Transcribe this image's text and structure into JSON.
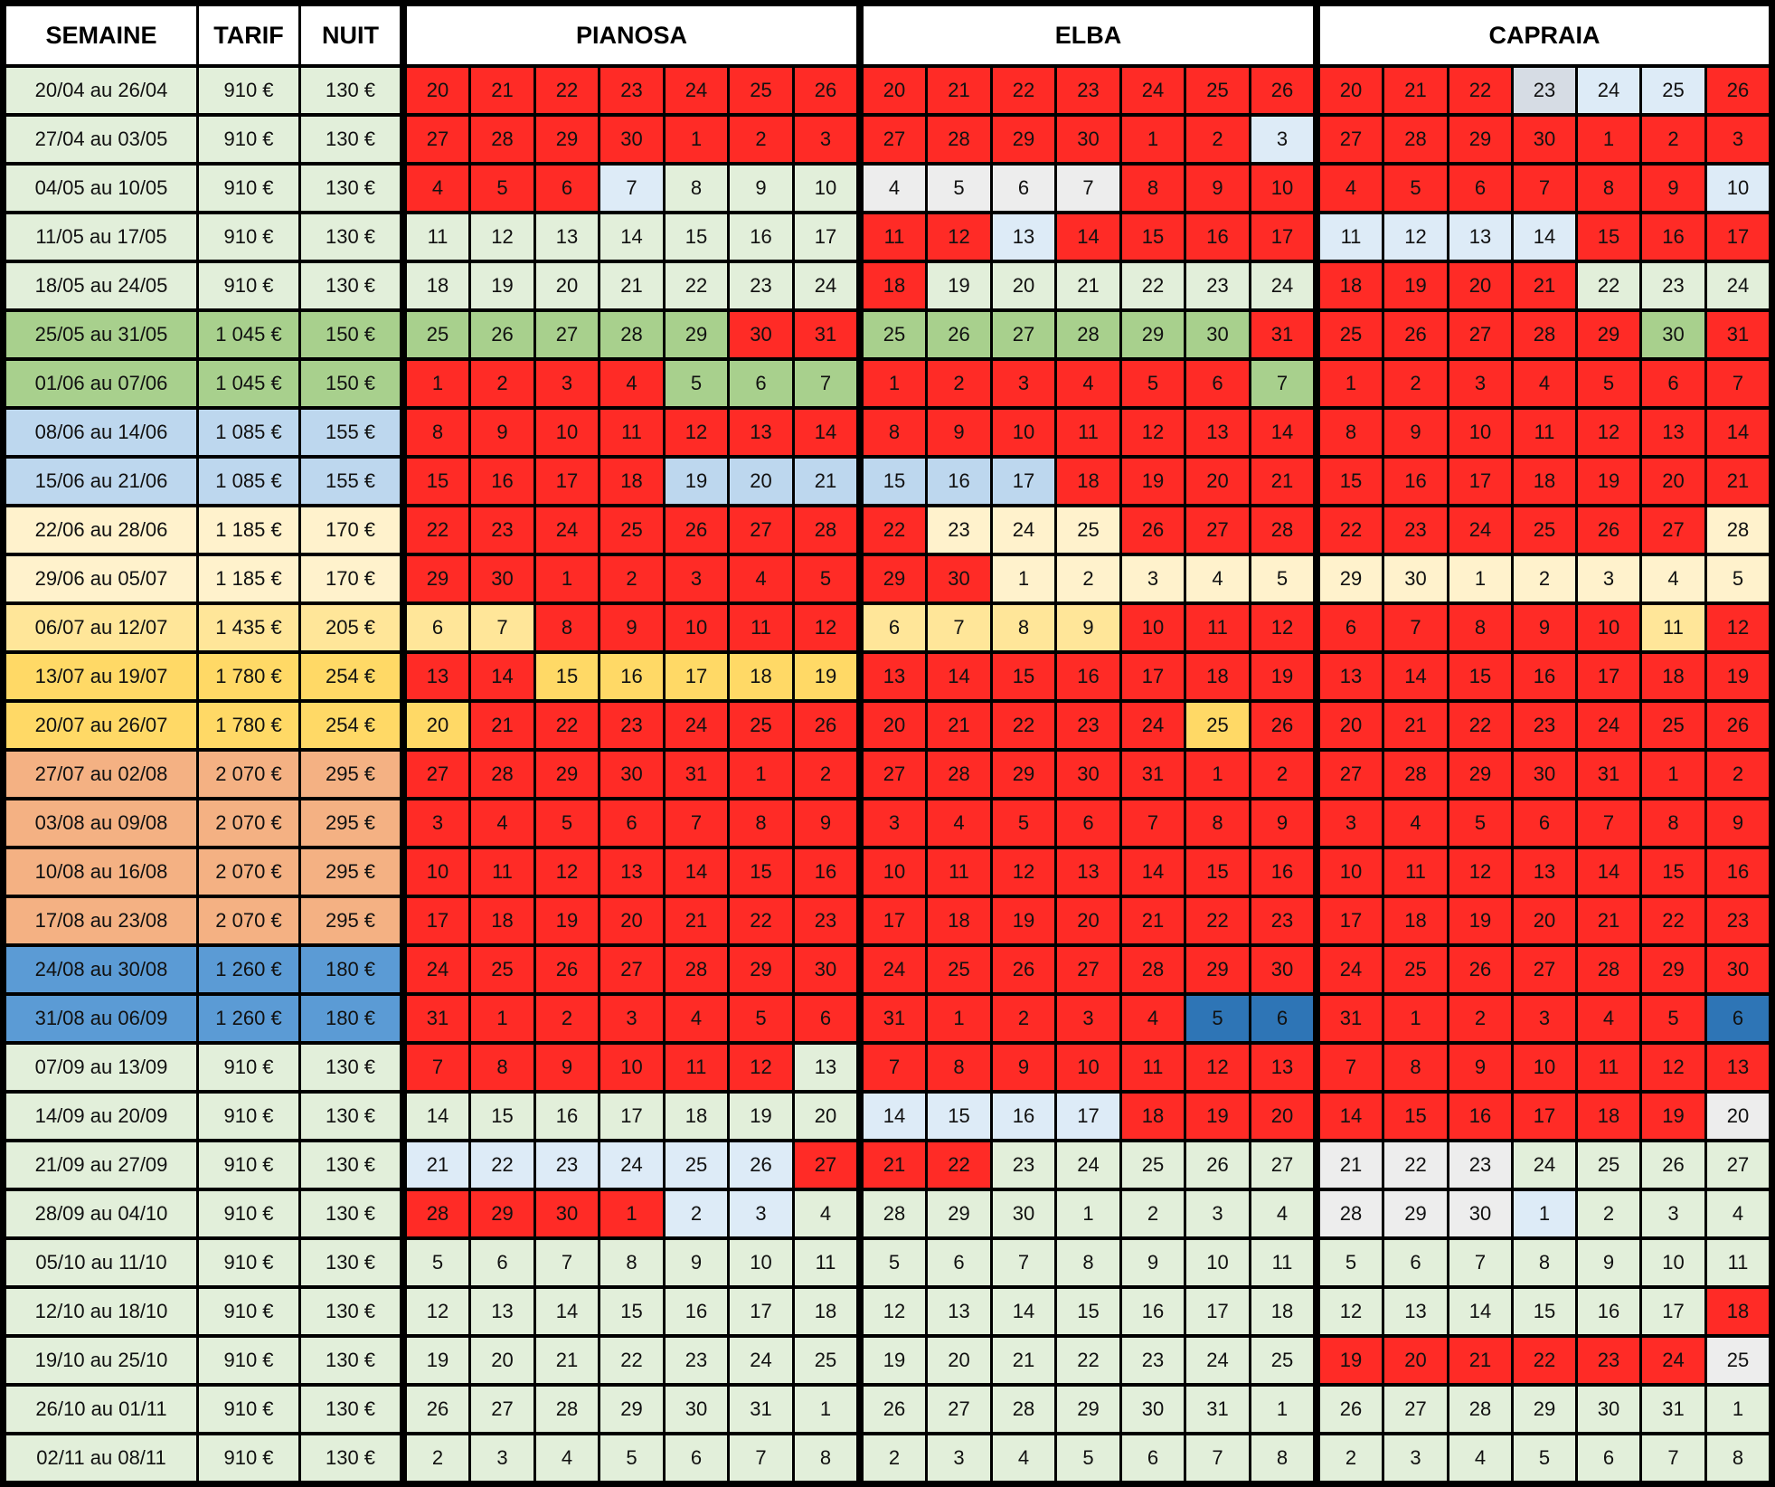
{
  "header": {
    "semaine": "SEMAINE",
    "tarif": "TARIF",
    "nuit": "NUIT",
    "pianosa": "PIANOSA",
    "elba": "ELBA",
    "capraia": "CAPRAIA"
  },
  "legend": {
    "R": "#ff2b26",
    "G": "#e2efda",
    "T": "#a8d08d",
    "B": "#bdd7ee",
    "Y": "#fff2cc",
    "Y2": "#ffe699",
    "Y3": "#ffd966",
    "O": "#f4b183",
    "D": "#5b9bd5",
    "DB": "#2e75b6",
    "W": "#ededed",
    "LB": "#ddebf7",
    "GR": "#d6dce4"
  },
  "weeks": [
    {
      "semaine": "20/04 au 26/04",
      "tarif": "910 €",
      "nuit": "130 €",
      "bg": "G",
      "days": [
        "20",
        "21",
        "22",
        "23",
        "24",
        "25",
        "26"
      ],
      "pianosa": "RRRRRRR",
      "elba": "RRRRRRR",
      "capraia": [
        "R",
        "R",
        "R",
        "GR",
        "LB",
        "LB",
        "R"
      ]
    },
    {
      "semaine": "27/04 au 03/05",
      "tarif": "910 €",
      "nuit": "130 €",
      "bg": "G",
      "days": [
        "27",
        "28",
        "29",
        "30",
        "1",
        "2",
        "3"
      ],
      "pianosa": "RRRRRRR",
      "elba": [
        "R",
        "R",
        "R",
        "R",
        "R",
        "R",
        "LB"
      ],
      "capraia": "RRRRRRR"
    },
    {
      "semaine": "04/05 au 10/05",
      "tarif": "910 €",
      "nuit": "130 €",
      "bg": "G",
      "days": [
        "4",
        "5",
        "6",
        "7",
        "8",
        "9",
        "10"
      ],
      "pianosa": [
        "R",
        "R",
        "R",
        "LB",
        "G",
        "G",
        "G"
      ],
      "elba": [
        "W",
        "W",
        "W",
        "W",
        "R",
        "R",
        "R"
      ],
      "capraia": [
        "R",
        "R",
        "R",
        "R",
        "R",
        "R",
        "LB"
      ]
    },
    {
      "semaine": "11/05 au 17/05",
      "tarif": "910 €",
      "nuit": "130 €",
      "bg": "G",
      "days": [
        "11",
        "12",
        "13",
        "14",
        "15",
        "16",
        "17"
      ],
      "pianosa": "GGGGGGG",
      "elba": [
        "R",
        "R",
        "LB",
        "R",
        "R",
        "R",
        "R"
      ],
      "capraia": [
        "LB",
        "LB",
        "LB",
        "LB",
        "R",
        "R",
        "R"
      ]
    },
    {
      "semaine": "18/05 au 24/05",
      "tarif": "910 €",
      "nuit": "130 €",
      "bg": "G",
      "days": [
        "18",
        "19",
        "20",
        "21",
        "22",
        "23",
        "24"
      ],
      "pianosa": "GGGGGGG",
      "elba": "RGGGGGG",
      "capraia": "RRRRGGG"
    },
    {
      "semaine": "25/05 au 31/05",
      "tarif": "1 045 €",
      "nuit": "150 €",
      "bg": "T",
      "days": [
        "25",
        "26",
        "27",
        "28",
        "29",
        "30",
        "31"
      ],
      "pianosa": "TTTTTRR",
      "elba": "TTTTTTR",
      "capraia": "RRRRRTR"
    },
    {
      "semaine": "01/06 au 07/06",
      "tarif": "1 045 €",
      "nuit": "150 €",
      "bg": "T",
      "days": [
        "1",
        "2",
        "3",
        "4",
        "5",
        "6",
        "7"
      ],
      "pianosa": "RRRRTTT",
      "elba": "RRRRRRT",
      "capraia": "RRRRRRR"
    },
    {
      "semaine": "08/06 au 14/06",
      "tarif": "1 085 €",
      "nuit": "155 €",
      "bg": "B",
      "days": [
        "8",
        "9",
        "10",
        "11",
        "12",
        "13",
        "14"
      ],
      "pianosa": "RRRRRRR",
      "elba": "RRRRRRR",
      "capraia": "RRRRRRR"
    },
    {
      "semaine": "15/06 au 21/06",
      "tarif": "1 085 €",
      "nuit": "155 €",
      "bg": "B",
      "days": [
        "15",
        "16",
        "17",
        "18",
        "19",
        "20",
        "21"
      ],
      "pianosa": "RRRRBBB",
      "elba": "BBBRRRR",
      "capraia": "RRRRRRR"
    },
    {
      "semaine": "22/06 au 28/06",
      "tarif": "1 185 €",
      "nuit": "170 €",
      "bg": "Y",
      "days": [
        "22",
        "23",
        "24",
        "25",
        "26",
        "27",
        "28"
      ],
      "pianosa": "RRRRRRR",
      "elba": "RYYYRRR",
      "capraia": "RRRRRRY"
    },
    {
      "semaine": "29/06 au 05/07",
      "tarif": "1 185 €",
      "nuit": "170 €",
      "bg": "Y",
      "days": [
        "29",
        "30",
        "1",
        "2",
        "3",
        "4",
        "5"
      ],
      "pianosa": "RRRRRRR",
      "elba": "RRYYYYY",
      "capraia": "YYYYYYY"
    },
    {
      "semaine": "06/07 au 12/07",
      "tarif": "1 435 €",
      "nuit": "205 €",
      "bg": "Y2",
      "days": [
        "6",
        "7",
        "8",
        "9",
        "10",
        "11",
        "12"
      ],
      "pianosa": [
        "Y2",
        "Y2",
        "R",
        "R",
        "R",
        "R",
        "R"
      ],
      "elba": [
        "Y2",
        "Y2",
        "Y2",
        "Y2",
        "R",
        "R",
        "R"
      ],
      "capraia": [
        "R",
        "R",
        "R",
        "R",
        "R",
        "Y2",
        "R"
      ]
    },
    {
      "semaine": "13/07 au 19/07",
      "tarif": "1 780 €",
      "nuit": "254 €",
      "bg": "Y3",
      "days": [
        "13",
        "14",
        "15",
        "16",
        "17",
        "18",
        "19"
      ],
      "pianosa": [
        "R",
        "R",
        "Y3",
        "Y3",
        "Y3",
        "Y3",
        "Y3"
      ],
      "elba": "RRRRRRR",
      "capraia": "RRRRRRR"
    },
    {
      "semaine": "20/07 au 26/07",
      "tarif": "1 780 €",
      "nuit": "254 €",
      "bg": "Y3",
      "days": [
        "20",
        "21",
        "22",
        "23",
        "24",
        "25",
        "26"
      ],
      "pianosa": [
        "Y3",
        "R",
        "R",
        "R",
        "R",
        "R",
        "R"
      ],
      "elba": [
        "R",
        "R",
        "R",
        "R",
        "R",
        "Y3",
        "R"
      ],
      "capraia": "RRRRRRR"
    },
    {
      "semaine": "27/07 au 02/08",
      "tarif": "2 070 €",
      "nuit": "295 €",
      "bg": "O",
      "days": [
        "27",
        "28",
        "29",
        "30",
        "31",
        "1",
        "2"
      ],
      "pianosa": "RRRRRRR",
      "elba": "RRRRRRR",
      "capraia": "RRRRRRR"
    },
    {
      "semaine": "03/08 au 09/08",
      "tarif": "2 070 €",
      "nuit": "295 €",
      "bg": "O",
      "days": [
        "3",
        "4",
        "5",
        "6",
        "7",
        "8",
        "9"
      ],
      "pianosa": "RRRRRRR",
      "elba": "RRRRRRR",
      "capraia": "RRRRRRR"
    },
    {
      "semaine": "10/08 au 16/08",
      "tarif": "2 070 €",
      "nuit": "295 €",
      "bg": "O",
      "days": [
        "10",
        "11",
        "12",
        "13",
        "14",
        "15",
        "16"
      ],
      "pianosa": "RRRRRRR",
      "elba": "RRRRRRR",
      "capraia": "RRRRRRR"
    },
    {
      "semaine": "17/08 au 23/08",
      "tarif": "2 070 €",
      "nuit": "295 €",
      "bg": "O",
      "days": [
        "17",
        "18",
        "19",
        "20",
        "21",
        "22",
        "23"
      ],
      "pianosa": "RRRRRRR",
      "elba": "RRRRRRR",
      "capraia": "RRRRRRR"
    },
    {
      "semaine": "24/08 au 30/08",
      "tarif": "1 260 €",
      "nuit": "180 €",
      "bg": "D",
      "days": [
        "24",
        "25",
        "26",
        "27",
        "28",
        "29",
        "30"
      ],
      "pianosa": "RRRRRRR",
      "elba": "RRRRRRR",
      "capraia": "RRRRRRR"
    },
    {
      "semaine": "31/08 au 06/09",
      "tarif": "1 260 €",
      "nuit": "180 €",
      "bg": "D",
      "days": [
        "31",
        "1",
        "2",
        "3",
        "4",
        "5",
        "6"
      ],
      "pianosa": "RRRRRRR",
      "elba": [
        "R",
        "R",
        "R",
        "R",
        "R",
        "DB",
        "DB"
      ],
      "capraia": [
        "R",
        "R",
        "R",
        "R",
        "R",
        "R",
        "DB"
      ]
    },
    {
      "semaine": "07/09 au 13/09",
      "tarif": "910 €",
      "nuit": "130 €",
      "bg": "G",
      "days": [
        "7",
        "8",
        "9",
        "10",
        "11",
        "12",
        "13"
      ],
      "pianosa": "RRRRRRG",
      "elba": "RRRRRRR",
      "capraia": "RRRRRRR"
    },
    {
      "semaine": "14/09 au 20/09",
      "tarif": "910 €",
      "nuit": "130 €",
      "bg": "G",
      "days": [
        "14",
        "15",
        "16",
        "17",
        "18",
        "19",
        "20"
      ],
      "pianosa": "GGGGGGG",
      "elba": [
        "LB",
        "LB",
        "LB",
        "LB",
        "R",
        "R",
        "R"
      ],
      "capraia": [
        "R",
        "R",
        "R",
        "R",
        "R",
        "R",
        "W"
      ]
    },
    {
      "semaine": "21/09 au 27/09",
      "tarif": "910 €",
      "nuit": "130 €",
      "bg": "G",
      "days": [
        "21",
        "22",
        "23",
        "24",
        "25",
        "26",
        "27"
      ],
      "pianosa": [
        "LB",
        "LB",
        "LB",
        "LB",
        "LB",
        "LB",
        "R"
      ],
      "elba": "RRGGGGG",
      "capraia": [
        "W",
        "W",
        "W",
        "G",
        "G",
        "G",
        "G"
      ]
    },
    {
      "semaine": "28/09 au 04/10",
      "tarif": "910 €",
      "nuit": "130 €",
      "bg": "G",
      "days": [
        "28",
        "29",
        "30",
        "1",
        "2",
        "3",
        "4"
      ],
      "pianosa": [
        "R",
        "R",
        "R",
        "R",
        "LB",
        "LB",
        "G"
      ],
      "elba": "GGGGGGG",
      "capraia": [
        "W",
        "W",
        "W",
        "LB",
        "G",
        "G",
        "G"
      ]
    },
    {
      "semaine": "05/10 au 11/10",
      "tarif": "910 €",
      "nuit": "130 €",
      "bg": "G",
      "days": [
        "5",
        "6",
        "7",
        "8",
        "9",
        "10",
        "11"
      ],
      "pianosa": "GGGGGGG",
      "elba": "GGGGGGG",
      "capraia": "GGGGGGG"
    },
    {
      "semaine": "12/10 au 18/10",
      "tarif": "910 €",
      "nuit": "130 €",
      "bg": "G",
      "days": [
        "12",
        "13",
        "14",
        "15",
        "16",
        "17",
        "18"
      ],
      "pianosa": "GGGGGGG",
      "elba": "GGGGGGG",
      "capraia": "GGGGGGR"
    },
    {
      "semaine": "19/10 au 25/10",
      "tarif": "910 €",
      "nuit": "130 €",
      "bg": "G",
      "days": [
        "19",
        "20",
        "21",
        "22",
        "23",
        "24",
        "25"
      ],
      "pianosa": "GGGGGGG",
      "elba": "GGGGGGG",
      "capraia": [
        "R",
        "R",
        "R",
        "R",
        "R",
        "R",
        "W"
      ]
    },
    {
      "semaine": "26/10 au 01/11",
      "tarif": "910 €",
      "nuit": "130 €",
      "bg": "G",
      "days": [
        "26",
        "27",
        "28",
        "29",
        "30",
        "31",
        "1"
      ],
      "pianosa": "GGGGGGG",
      "elba": "GGGGGGG",
      "capraia": "GGGGGGG"
    },
    {
      "semaine": "02/11 au 08/11",
      "tarif": "910 €",
      "nuit": "130 €",
      "bg": "G",
      "days": [
        "2",
        "3",
        "4",
        "5",
        "6",
        "7",
        "8"
      ],
      "pianosa": "GGGGGGG",
      "elba": "GGGGGGG",
      "capraia": "GGGGGGG"
    }
  ]
}
